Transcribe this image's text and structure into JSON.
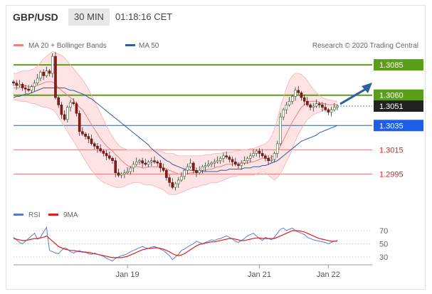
{
  "header": {
    "symbol": "GBP/USD",
    "timeframe": "30 MIN",
    "time": "01:18:16 CET"
  },
  "legend": {
    "bollinger": "MA 20 + Bollinger Bands",
    "ma50": "MA 50",
    "credit": "Research © 2020 Trading Central",
    "rsi": "RSI",
    "rsi_ma": "9MA"
  },
  "colors": {
    "bollinger": "#f08080",
    "band_fill": "#fde3e3",
    "ma50": "#2f5f9e",
    "resistance": "#5a9e1a",
    "current": "#222222",
    "support_label": "#1e5ee6",
    "support_line": "#e88080",
    "target_arrow": "#2f5f9e",
    "rsi": "#5b78d6",
    "rsi_ma": "#e21c1c"
  },
  "chart_data": {
    "type": "candlestick",
    "price_ylim": [
      2980,
      3100
    ],
    "x_ticks": [
      "Jan 19",
      "Jan 21",
      "Jan 22"
    ],
    "levels": [
      {
        "label": "1.3085",
        "value": 3085,
        "kind": "resistance"
      },
      {
        "label": "1.3060",
        "value": 3060,
        "kind": "resistance"
      },
      {
        "label": "1.3051",
        "value": 3051,
        "kind": "current"
      },
      {
        "label": "1.3035",
        "value": 3035,
        "kind": "support-line"
      },
      {
        "label": "1.3015",
        "value": 3015,
        "kind": "support"
      },
      {
        "label": "1.2995",
        "value": 2995,
        "kind": "support"
      }
    ],
    "close": [
      3070,
      3068,
      3069,
      3066,
      3065,
      3064,
      3067,
      3070,
      3074,
      3079,
      3076,
      3080,
      3078,
      3092,
      3058,
      3052,
      3044,
      3040,
      3050,
      3054,
      3053,
      3045,
      3030,
      3028,
      3026,
      3024,
      3020,
      3018,
      3016,
      3014,
      3012,
      3010,
      3008,
      3006,
      2996,
      2994,
      2995,
      2996,
      2997,
      3000,
      3003,
      3005,
      3006,
      3004,
      3003,
      3005,
      3006,
      3005,
      3004,
      3000,
      2998,
      2992,
      2988,
      2984,
      2987,
      2990,
      2993,
      2998,
      3001,
      3004,
      2998,
      2996,
      2998,
      3001,
      3002,
      3003,
      3004,
      3005,
      3006,
      3008,
      3010,
      3009,
      3007,
      3005,
      3003,
      3002,
      3004,
      3006,
      3008,
      3010,
      3012,
      3014,
      3012,
      3010,
      3008,
      3006,
      3007,
      3012,
      3020,
      3042,
      3048,
      3052,
      3055,
      3059,
      3064,
      3062,
      3058,
      3055,
      3052,
      3050,
      3051,
      3053,
      3052,
      3050,
      3048,
      3046,
      3048,
      3050,
      3051
    ],
    "ma20": [
      3066,
      3066,
      3066,
      3067,
      3068,
      3067,
      3067,
      3068,
      3068,
      3069,
      3070,
      3071,
      3071,
      3071,
      3069,
      3066,
      3064,
      3062,
      3060,
      3058,
      3056,
      3053,
      3050,
      3048,
      3044,
      3040,
      3036,
      3032,
      3028,
      3024,
      3021,
      3018,
      3016,
      3014,
      3011,
      3009,
      3006,
      3004,
      3002,
      3001,
      3001,
      3001,
      3001,
      3000,
      3000,
      3001,
      3001,
      3001,
      3001,
      3001,
      3000,
      2999,
      2998,
      2997,
      2996,
      2995,
      2995,
      2995,
      2995,
      2996,
      2996,
      2997,
      2997,
      2998,
      2998,
      2999,
      2999,
      3000,
      3001,
      3001,
      3002,
      3003,
      3003,
      3003,
      3004,
      3004,
      3004,
      3004,
      3004,
      3005,
      3005,
      3006,
      3007,
      3008,
      3008,
      3008,
      3009,
      3010,
      3013,
      3018,
      3023,
      3028,
      3033,
      3038,
      3042,
      3046,
      3050,
      3052,
      3054,
      3055,
      3055,
      3055,
      3054,
      3053,
      3053,
      3052,
      3052,
      3052,
      3052
    ],
    "ma50": [
      3058,
      3059,
      3059,
      3060,
      3061,
      3061,
      3062,
      3063,
      3064,
      3065,
      3066,
      3066,
      3066,
      3066,
      3066,
      3066,
      3066,
      3066,
      3065,
      3064,
      3064,
      3063,
      3062,
      3061,
      3060,
      3058,
      3057,
      3055,
      3053,
      3051,
      3049,
      3047,
      3045,
      3043,
      3041,
      3039,
      3037,
      3035,
      3033,
      3031,
      3029,
      3027,
      3025,
      3023,
      3021,
      3019,
      3016,
      3014,
      3012,
      3010,
      3008,
      3006,
      3005,
      3003,
      3002,
      3001,
      3000,
      2999,
      2999,
      2998,
      2998,
      2997,
      2997,
      2997,
      2997,
      2997,
      2997,
      2997,
      2997,
      2998,
      2998,
      2998,
      2999,
      2999,
      2999,
      2999,
      2999,
      3000,
      3000,
      3000,
      3001,
      3001,
      3001,
      3002,
      3002,
      3003,
      3004,
      3005,
      3006,
      3008,
      3010,
      3012,
      3014,
      3016,
      3018,
      3020,
      3022,
      3023,
      3024,
      3025,
      3026,
      3027,
      3029,
      3030,
      3031,
      3032,
      3033,
      3034,
      3035
    ],
    "band_upper": [
      3078,
      3078,
      3079,
      3080,
      3080,
      3080,
      3081,
      3082,
      3084,
      3087,
      3090,
      3092,
      3094,
      3096,
      3095,
      3094,
      3093,
      3091,
      3088,
      3085,
      3082,
      3079,
      3076,
      3073,
      3069,
      3065,
      3060,
      3055,
      3050,
      3045,
      3040,
      3035,
      3030,
      3026,
      3022,
      3019,
      3017,
      3016,
      3015,
      3015,
      3015,
      3015,
      3015,
      3014,
      3014,
      3014,
      3014,
      3014,
      3014,
      3014,
      3013,
      3012,
      3012,
      3012,
      3011,
      3010,
      3010,
      3010,
      3010,
      3010,
      3010,
      3010,
      3010,
      3010,
      3011,
      3011,
      3011,
      3012,
      3012,
      3012,
      3013,
      3013,
      3013,
      3013,
      3014,
      3014,
      3015,
      3015,
      3015,
      3016,
      3016,
      3017,
      3018,
      3019,
      3020,
      3022,
      3026,
      3032,
      3040,
      3050,
      3058,
      3066,
      3072,
      3076,
      3078,
      3078,
      3077,
      3075,
      3072,
      3068,
      3065,
      3062,
      3060,
      3058,
      3057,
      3056,
      3056,
      3055,
      3055
    ],
    "band_lower": [
      3056,
      3056,
      3055,
      3055,
      3055,
      3054,
      3053,
      3053,
      3052,
      3051,
      3050,
      3050,
      3049,
      3048,
      3046,
      3042,
      3038,
      3034,
      3030,
      3026,
      3022,
      3018,
      3014,
      3010,
      3006,
      3002,
      2998,
      2995,
      2992,
      2990,
      2988,
      2987,
      2986,
      2985,
      2984,
      2984,
      2984,
      2985,
      2986,
      2987,
      2988,
      2988,
      2988,
      2987,
      2986,
      2986,
      2986,
      2985,
      2984,
      2983,
      2982,
      2980,
      2978,
      2978,
      2978,
      2979,
      2980,
      2981,
      2982,
      2983,
      2984,
      2984,
      2985,
      2986,
      2986,
      2987,
      2988,
      2988,
      2988,
      2989,
      2990,
      2991,
      2992,
      2993,
      2993,
      2994,
      2994,
      2994,
      2994,
      2994,
      2994,
      2995,
      2996,
      2997,
      2996,
      2994,
      2992,
      2990,
      2992,
      2995,
      3000,
      3005,
      3010,
      3016,
      3022,
      3028,
      3032,
      3036,
      3040,
      3042,
      3044,
      3045,
      3046,
      3047,
      3048,
      3048,
      3048,
      3048,
      3049
    ],
    "rsi_ticks": [
      70,
      50,
      30
    ],
    "rsi_ylim": [
      20,
      80
    ],
    "rsi": [
      60,
      56,
      52,
      50,
      54,
      58,
      62,
      66,
      57,
      60,
      68,
      75,
      40,
      38,
      36,
      35,
      40,
      44,
      42,
      38,
      36,
      38,
      40,
      37,
      38,
      35,
      34,
      36,
      34,
      33,
      31,
      28,
      26,
      24,
      28,
      30,
      32,
      33,
      35,
      38,
      40,
      42,
      44,
      46,
      44,
      43,
      45,
      46,
      44,
      42,
      40,
      36,
      32,
      26,
      30,
      34,
      40,
      42,
      45,
      48,
      50,
      54,
      52,
      50,
      52,
      54,
      56,
      55,
      57,
      58,
      60,
      62,
      60,
      57,
      54,
      52,
      55,
      58,
      62,
      64,
      66,
      62,
      58,
      55,
      60,
      58,
      56,
      60,
      66,
      72,
      74,
      70,
      72,
      74,
      70,
      68,
      66,
      64,
      60,
      58,
      56,
      55,
      54,
      53,
      52,
      50,
      52,
      54,
      55
    ],
    "rsi_ma": [
      58,
      57,
      56,
      55,
      55,
      56,
      57,
      58,
      58,
      59,
      60,
      62,
      58,
      54,
      50,
      46,
      44,
      42,
      41,
      40,
      40,
      39,
      38,
      38,
      37,
      37,
      36,
      35,
      34,
      33,
      32,
      31,
      30,
      29,
      29,
      29,
      29,
      30,
      31,
      33,
      35,
      37,
      39,
      41,
      42,
      43,
      43,
      44,
      44,
      43,
      42,
      40,
      38,
      35,
      33,
      32,
      33,
      35,
      38,
      41,
      44,
      47,
      49,
      50,
      51,
      52,
      53,
      53,
      54,
      55,
      56,
      57,
      58,
      58,
      57,
      56,
      55,
      55,
      56,
      57,
      58,
      59,
      59,
      58,
      58,
      58,
      58,
      58,
      60,
      62,
      64,
      66,
      68,
      70,
      70,
      70,
      69,
      68,
      66,
      64,
      62,
      60,
      58,
      57,
      56,
      55,
      54,
      54,
      54
    ]
  }
}
